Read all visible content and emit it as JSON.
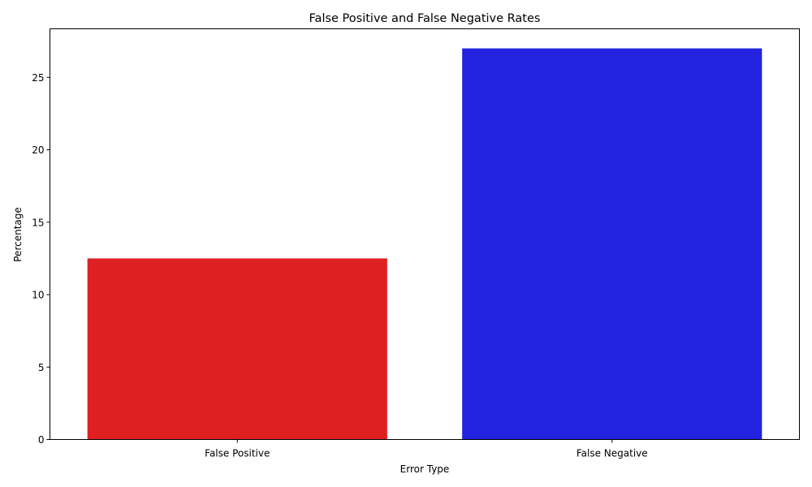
{
  "chart_data": {
    "type": "bar",
    "title": "False Positive and False Negative Rates",
    "xlabel": "Error Type",
    "ylabel": "Percentage",
    "categories": [
      "False Positive",
      "False Negative"
    ],
    "values": [
      12.5,
      27.0
    ],
    "colors": [
      "#df2022",
      "#2222df"
    ],
    "ylim": [
      0,
      28.35
    ],
    "yticks": [
      0,
      5,
      10,
      15,
      20,
      25
    ],
    "ytick_labels": [
      "0",
      "5",
      "10",
      "15",
      "20",
      "25"
    ],
    "grid": false,
    "legend": "none"
  }
}
